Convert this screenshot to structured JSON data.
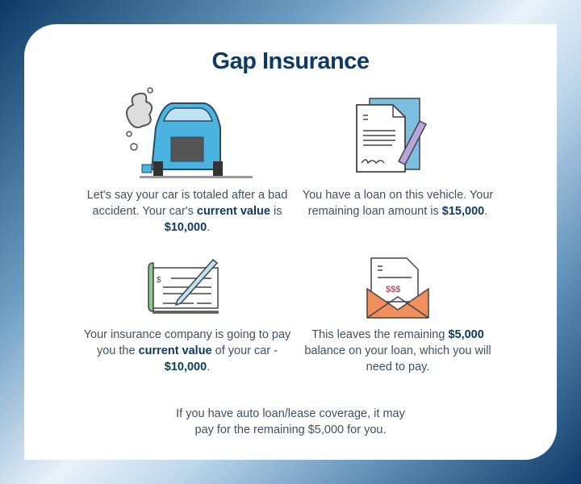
{
  "title": "Gap Insurance",
  "steps": [
    {
      "icon": "wrecked-car-icon",
      "parts": [
        "Let's say your car is totaled after a bad accident. Your car's ",
        "current value",
        " is ",
        "$10,000",
        "."
      ]
    },
    {
      "icon": "signed-document-icon",
      "parts": [
        "You have a loan on this vehicle. Your remaining loan amount is ",
        "$15,000",
        "."
      ]
    },
    {
      "icon": "check-and-pen-icon",
      "parts": [
        "Your insurance company is going to pay you the ",
        "current value",
        " of your car - ",
        "$10,000",
        "."
      ]
    },
    {
      "icon": "bill-envelope-icon",
      "parts": [
        "This leaves the remaining ",
        "$5,000",
        " balance on your loan, which you will need to pay."
      ]
    }
  ],
  "footer": "If you have auto loan/lease coverage, it may pay for the remaining $5,000 for you.",
  "colors": {
    "navy": "#0d3b63",
    "car_blue": "#4bb3e0",
    "check_green": "#8cc88a",
    "envelope_orange": "#ee8f5c",
    "money_pink": "#c2456a"
  }
}
